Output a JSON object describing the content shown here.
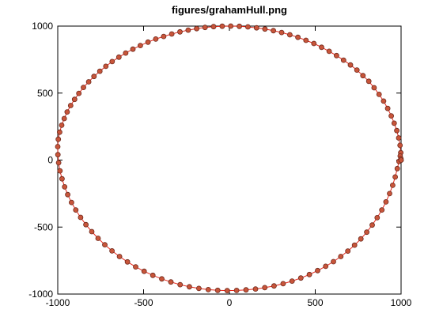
{
  "chart_data": {
    "type": "scatter",
    "title": "figures/grahamHull.png",
    "xlabel": "",
    "ylabel": "",
    "xlim": [
      -1000,
      1000
    ],
    "ylim": [
      -1000,
      1000
    ],
    "xticks": [
      -1000,
      -500,
      0,
      500,
      1000
    ],
    "yticks": [
      -1000,
      -500,
      0,
      500,
      1000
    ],
    "xtick_labels": [
      "-1000",
      "-500",
      "0",
      "500",
      "1000"
    ],
    "ytick_labels": [
      "-1000",
      "-500",
      "0",
      "500",
      "1000"
    ],
    "grid": false,
    "legend": false,
    "colors": {
      "line": "#e8261a",
      "marker_fill": "#c8553a",
      "marker_edge": "#6e2a1e"
    },
    "series": [
      {
        "marker": "circle",
        "connected": true,
        "x": [
          1000,
          998,
          994,
          986,
          975,
          960,
          943,
          922,
          898,
          872,
          843,
          812,
          778,
          743,
          705,
          665,
          624,
          581,
          537,
          492,
          446,
          399,
          352,
          304,
          256,
          207,
          158,
          108,
          58,
          8,
          -42,
          -92,
          -142,
          -191,
          -240,
          -288,
          -336,
          -383,
          -429,
          -474,
          -519,
          -562,
          -604,
          -644,
          -683,
          -720,
          -755,
          -789,
          -820,
          -850,
          -877,
          -902,
          -925,
          -945,
          -962,
          -977,
          -989,
          -997,
          -1000,
          -999,
          -995,
          -987,
          -975,
          -960,
          -942,
          -920,
          -895,
          -867,
          -836,
          -802,
          -765,
          -726,
          -684,
          -640,
          -594,
          -546,
          -497,
          -446,
          -394,
          -341,
          -287,
          -233,
          -178,
          -123,
          -68,
          -13,
          42,
          97,
          152,
          206,
          260,
          313,
          365,
          416,
          466,
          514,
          561,
          606,
          649,
          690,
          729,
          766,
          800,
          832,
          861,
          888,
          912,
          933,
          951,
          966,
          978,
          988,
          995,
          999,
          1000
        ],
        "y": [
          0,
          55,
          110,
          165,
          220,
          275,
          330,
          385,
          440,
          490,
          540,
          588,
          630,
          672,
          710,
          746,
          780,
          812,
          842,
          870,
          894,
          916,
          935,
          952,
          966,
          978,
          987,
          994,
          998,
          1000,
          999,
          996,
          990,
          981,
          970,
          957,
          941,
          923,
          903,
          880,
          855,
          828,
          799,
          768,
          735,
          700,
          663,
          624,
          584,
          542,
          498,
          453,
          407,
          359,
          310,
          260,
          208,
          155,
          100,
          40,
          -20,
          -80,
          -140,
          -200,
          -258,
          -316,
          -372,
          -428,
          -482,
          -534,
          -584,
          -632,
          -678,
          -720,
          -760,
          -797,
          -830,
          -860,
          -887,
          -910,
          -930,
          -946,
          -958,
          -967,
          -972,
          -974,
          -973,
          -969,
          -962,
          -952,
          -939,
          -923,
          -903,
          -880,
          -854,
          -825,
          -793,
          -758,
          -720,
          -679,
          -635,
          -588,
          -538,
          -485,
          -430,
          -372,
          -312,
          -250,
          -188,
          -126,
          -64,
          -10,
          30,
          10,
          0
        ]
      }
    ]
  }
}
